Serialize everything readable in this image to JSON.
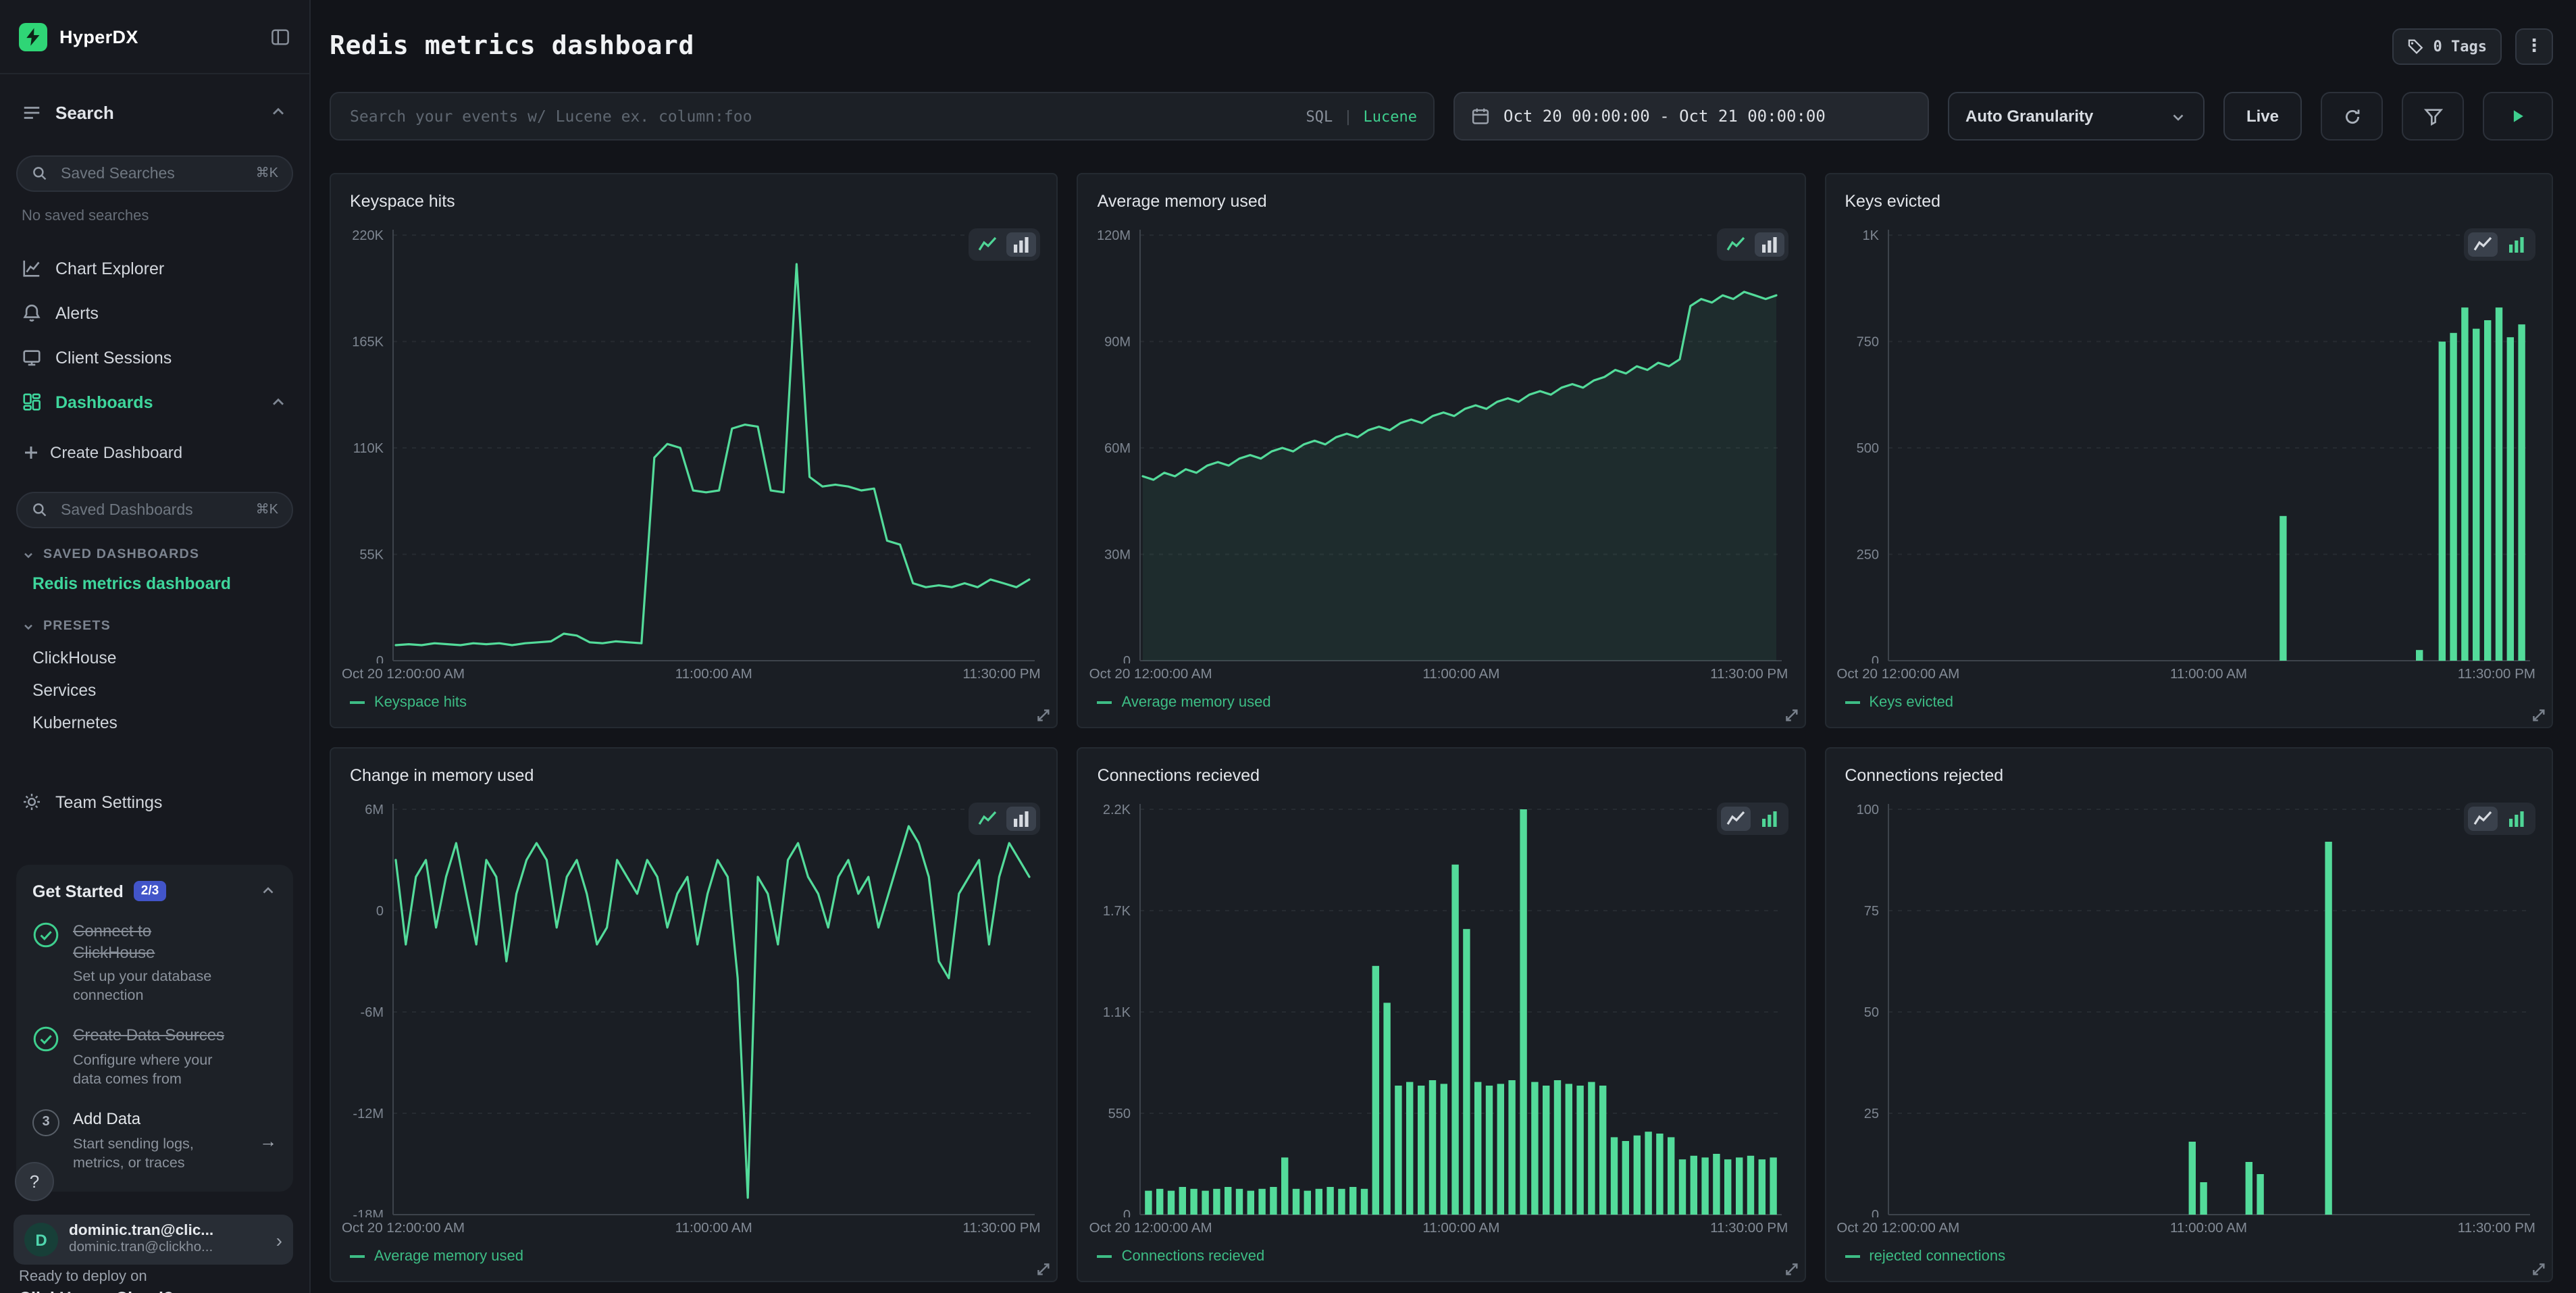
{
  "brand": {
    "name": "HyperDX"
  },
  "sidebar": {
    "search_header": "Search",
    "saved_searches": {
      "placeholder": "Saved Searches",
      "shortcut": "⌘K",
      "empty": "No saved searches"
    },
    "nav": [
      {
        "label": "Chart Explorer"
      },
      {
        "label": "Alerts"
      },
      {
        "label": "Client Sessions"
      },
      {
        "label": "Dashboards"
      }
    ],
    "create_dashboard": "Create Dashboard",
    "saved_dashboards_search": {
      "placeholder": "Saved Dashboards",
      "shortcut": "⌘K"
    },
    "sections": {
      "saved": "SAVED DASHBOARDS",
      "presets": "PRESETS"
    },
    "saved_dashboards": [
      {
        "label": "Redis metrics dashboard"
      }
    ],
    "presets": [
      {
        "label": "ClickHouse"
      },
      {
        "label": "Services"
      },
      {
        "label": "Kubernetes"
      }
    ],
    "team_settings": "Team Settings",
    "get_started": {
      "title": "Get Started",
      "badge": "2/3",
      "arrow": "→",
      "items": [
        {
          "step": "1",
          "done": true,
          "title": "Connect to ClickHouse",
          "subtitle": "Set up your database connection"
        },
        {
          "step": "2",
          "done": true,
          "title": "Create Data Sources",
          "subtitle": "Configure where your data comes from"
        },
        {
          "step": "3",
          "done": false,
          "title": "Add Data",
          "subtitle": "Start sending logs, metrics, or traces"
        }
      ]
    },
    "help": "?",
    "user": {
      "initial": "D",
      "name": "dominic.tran@clic...",
      "email": "dominic.tran@clickho...",
      "chevron": "›"
    },
    "banner": {
      "line1": "Ready to deploy on",
      "line2": "ClickHouse Cloud?"
    }
  },
  "header": {
    "title": "Redis metrics dashboard",
    "tags": "0 Tags",
    "menu": "⋮"
  },
  "toolbar": {
    "search_placeholder": "Search your events w/ Lucene ex. column:foo",
    "sql": "SQL",
    "divider": "|",
    "lucene": "Lucene",
    "date_range": "Oct 20 00:00:00 - Oct 21 00:00:00",
    "granularity": "Auto Granularity",
    "live": "Live"
  },
  "colors": {
    "green": "#53db9a",
    "grid": "#262b31",
    "axis": "#3d434b",
    "tick": "#7e8691",
    "accent": "#3ecf8e"
  },
  "charts": [
    {
      "title": "Keyspace hits",
      "legend": "Keyspace hits",
      "type": "line",
      "unit": "K",
      "ylim": [
        0,
        220
      ],
      "y_ticks": [
        {
          "value": 0,
          "label": "0"
        },
        {
          "value": 55,
          "label": "55K"
        },
        {
          "value": 110,
          "label": "110K"
        },
        {
          "value": 165,
          "label": "165K"
        },
        {
          "value": 220,
          "label": "220K"
        }
      ],
      "x_labels": [
        "Oct 20 12:00:00 AM",
        "11:00:00 AM",
        "11:30:00 PM"
      ],
      "values": [
        8,
        8.5,
        8,
        9,
        8.5,
        8,
        9,
        8.5,
        9,
        8,
        9,
        9.5,
        10,
        14,
        13,
        9.5,
        9,
        10,
        9.5,
        9,
        105,
        112,
        110,
        88,
        87,
        88,
        120,
        122,
        121,
        88,
        87,
        205,
        95,
        90,
        91,
        90,
        88,
        89,
        62,
        60,
        40,
        38,
        39,
        38,
        40,
        38,
        42,
        40,
        38,
        42
      ]
    },
    {
      "title": "Average memory used",
      "legend": "Average memory used",
      "type": "line",
      "unit": "M",
      "fill": true,
      "ylim": [
        0,
        120
      ],
      "y_ticks": [
        {
          "value": 0,
          "label": "0"
        },
        {
          "value": 30,
          "label": "30M"
        },
        {
          "value": 60,
          "label": "60M"
        },
        {
          "value": 90,
          "label": "90M"
        },
        {
          "value": 120,
          "label": "120M"
        }
      ],
      "x_labels": [
        "Oct 20 12:00:00 AM",
        "11:00:00 AM",
        "11:30:00 PM"
      ],
      "values": [
        52,
        51,
        53,
        52,
        54,
        53,
        55,
        56,
        55,
        57,
        58,
        57,
        59,
        60,
        59,
        61,
        62,
        61,
        63,
        64,
        63,
        65,
        66,
        65,
        67,
        68,
        67,
        69,
        70,
        69,
        71,
        72,
        71,
        73,
        74,
        73,
        75,
        76,
        75,
        77,
        78,
        77,
        79,
        80,
        82,
        81,
        83,
        82,
        84,
        83,
        85,
        100,
        102,
        101,
        103,
        102,
        104,
        103,
        102,
        103
      ]
    },
    {
      "title": "Keys evicted",
      "legend": "Keys evicted",
      "type": "bar",
      "unit": "",
      "ylim": [
        0,
        1000
      ],
      "y_ticks": [
        {
          "value": 0,
          "label": "0"
        },
        {
          "value": 250,
          "label": "250"
        },
        {
          "value": 500,
          "label": "500"
        },
        {
          "value": 750,
          "label": "750"
        },
        {
          "value": 1000,
          "label": "1K"
        }
      ],
      "x_labels": [
        "Oct 20 12:00:00 AM",
        "11:00:00 AM",
        "11:30:00 PM"
      ],
      "values": [
        0,
        0,
        0,
        0,
        0,
        0,
        0,
        0,
        0,
        0,
        0,
        0,
        0,
        0,
        0,
        0,
        0,
        0,
        0,
        0,
        0,
        0,
        0,
        0,
        0,
        0,
        0,
        0,
        0,
        0,
        0,
        0,
        0,
        0,
        340,
        0,
        0,
        0,
        0,
        0,
        0,
        0,
        0,
        0,
        0,
        0,
        25,
        0,
        750,
        770,
        830,
        780,
        800,
        830,
        760,
        790
      ]
    },
    {
      "title": "Change in memory used",
      "legend": "Average memory used",
      "type": "line",
      "unit": "M",
      "ylim": [
        -18,
        6
      ],
      "y_ticks": [
        {
          "value": 6,
          "label": "6M"
        },
        {
          "value": 0,
          "label": "0"
        },
        {
          "value": -6,
          "label": "-6M"
        },
        {
          "value": -12,
          "label": "-12M"
        },
        {
          "value": -18,
          "label": "-18M"
        }
      ],
      "x_labels": [
        "Oct 20 12:00:00 AM",
        "11:00:00 AM",
        "11:30:00 PM"
      ],
      "values": [
        3,
        -2,
        2,
        3,
        -1,
        2,
        4,
        1,
        -2,
        3,
        2,
        -3,
        1,
        3,
        4,
        3,
        -1,
        2,
        3,
        1,
        -2,
        -1,
        3,
        2,
        1,
        3,
        2,
        -1,
        1,
        2,
        -2,
        1,
        3,
        2,
        -4,
        -17,
        2,
        1,
        -2,
        3,
        4,
        2,
        1,
        -1,
        2,
        3,
        1,
        2,
        -1,
        1,
        3,
        5,
        4,
        2,
        -3,
        -4,
        1,
        2,
        3,
        -2,
        2,
        4,
        3,
        2
      ]
    },
    {
      "title": "Connections recieved",
      "legend": "Connections recieved",
      "type": "bar",
      "unit": "",
      "ylim": [
        0,
        2200
      ],
      "y_ticks": [
        {
          "value": 0,
          "label": "0"
        },
        {
          "value": 550,
          "label": "550"
        },
        {
          "value": 1100,
          "label": "1.1K"
        },
        {
          "value": 1650,
          "label": "1.7K"
        },
        {
          "value": 2200,
          "label": "2.2K"
        }
      ],
      "x_labels": [
        "Oct 20 12:00:00 AM",
        "11:00:00 AM",
        "11:30:00 PM"
      ],
      "values": [
        130,
        140,
        130,
        150,
        140,
        130,
        140,
        150,
        140,
        130,
        140,
        150,
        310,
        140,
        130,
        140,
        150,
        140,
        150,
        140,
        1350,
        1150,
        700,
        720,
        700,
        730,
        710,
        1900,
        1550,
        720,
        700,
        710,
        730,
        2200,
        720,
        700,
        730,
        710,
        700,
        720,
        700,
        420,
        400,
        430,
        450,
        440,
        420,
        300,
        320,
        310,
        330,
        300,
        310,
        320,
        300,
        310
      ]
    },
    {
      "title": "Connections rejected",
      "legend": "rejected connections",
      "type": "bar",
      "unit": "",
      "ylim": [
        0,
        100
      ],
      "y_ticks": [
        {
          "value": 0,
          "label": "0"
        },
        {
          "value": 25,
          "label": "25"
        },
        {
          "value": 50,
          "label": "50"
        },
        {
          "value": 75,
          "label": "75"
        },
        {
          "value": 100,
          "label": "100"
        }
      ],
      "x_labels": [
        "Oct 20 12:00:00 AM",
        "11:00:00 AM",
        "11:30:00 PM"
      ],
      "values": [
        0,
        0,
        0,
        0,
        0,
        0,
        0,
        0,
        0,
        0,
        0,
        0,
        0,
        0,
        0,
        0,
        0,
        0,
        0,
        0,
        0,
        0,
        0,
        0,
        0,
        0,
        18,
        8,
        0,
        0,
        0,
        13,
        10,
        0,
        0,
        0,
        0,
        0,
        92,
        0,
        0,
        0,
        0,
        0,
        0,
        0,
        0,
        0,
        0,
        0,
        0,
        0,
        0,
        0,
        0,
        0
      ]
    }
  ]
}
